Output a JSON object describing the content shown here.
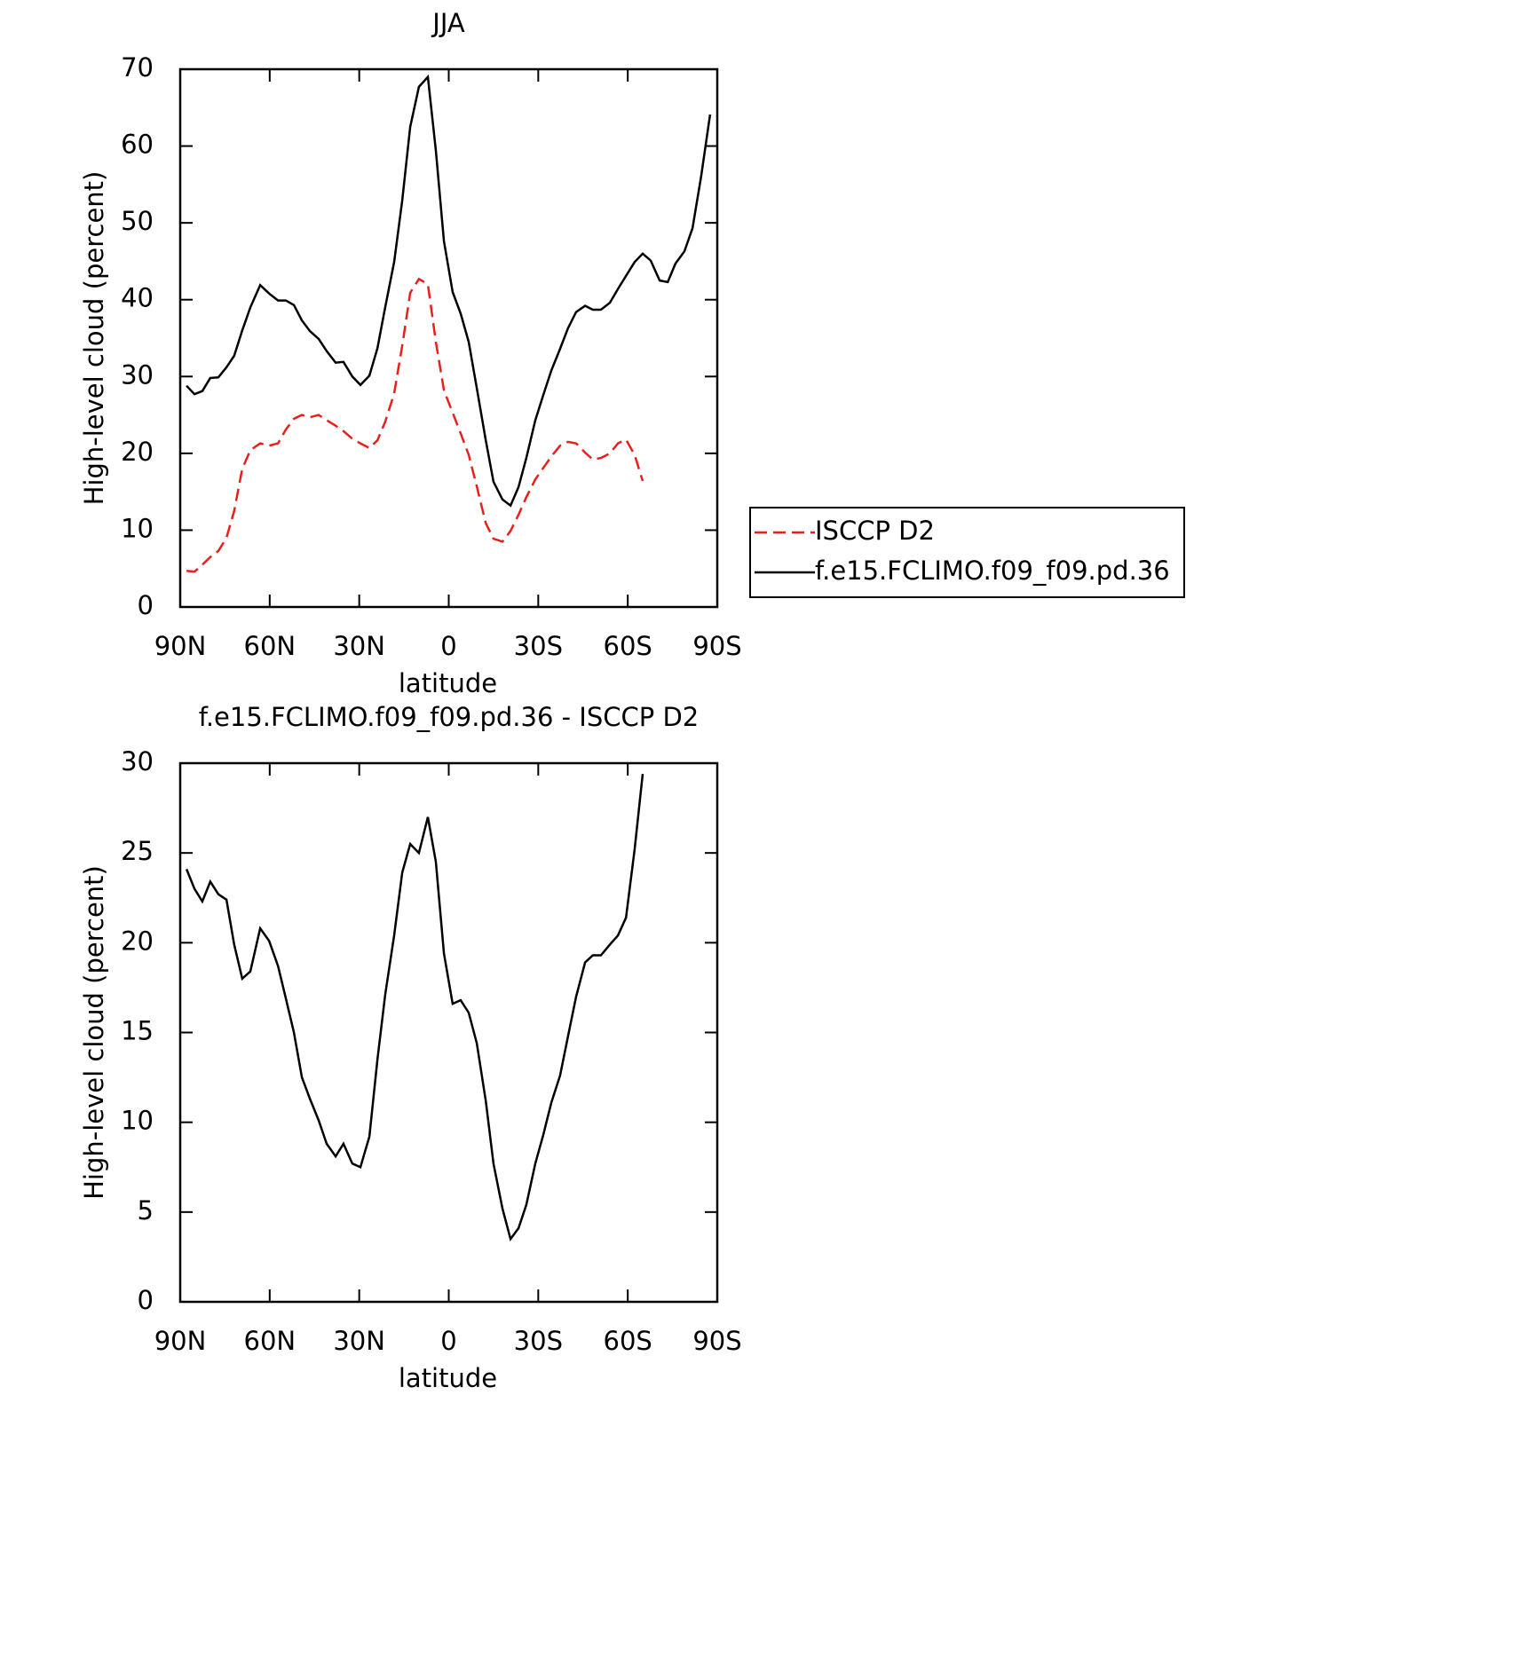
{
  "chart_data": [
    {
      "type": "line",
      "title": "JJA",
      "xlabel": "latitude",
      "ylabel": "High-level cloud (percent)",
      "x": [
        87.9,
        85.2,
        82.6,
        79.9,
        77.2,
        74.5,
        71.9,
        69.2,
        66.5,
        63.2,
        60.2,
        57.2,
        54.6,
        51.9,
        49.2,
        46.5,
        43.6,
        40.9,
        37.9,
        35.3,
        32.3,
        29.6,
        26.6,
        23.9,
        21.3,
        18.3,
        15.6,
        12.9,
        10.0,
        7.0,
        4.3,
        1.6,
        -1.3,
        -4.0,
        -6.7,
        -9.4,
        -12.4,
        -15.0,
        -18.0,
        -20.7,
        -23.4,
        -26.0,
        -29.0,
        -31.7,
        -34.4,
        -37.3,
        -40.0,
        -42.7,
        -45.7,
        -48.3,
        -51.0,
        -54.0,
        -56.7,
        -59.4,
        -62.3,
        -65.0,
        -67.7,
        -70.7,
        -73.4,
        -76.0,
        -79.0,
        -81.7,
        -84.6,
        -87.6
      ],
      "series": [
        {
          "name": "ISCCP D2",
          "color": "#e8201c",
          "dashed": true,
          "values": [
            4.7,
            4.6,
            5.5,
            6.5,
            7.3,
            9.0,
            12.5,
            18.0,
            20.4,
            21.3,
            21.0,
            21.3,
            23.1,
            24.5,
            25.0,
            24.7,
            25.0,
            24.3,
            23.6,
            22.9,
            21.9,
            21.3,
            20.7,
            21.7,
            24.1,
            27.8,
            34.0,
            40.9,
            42.7,
            42.0,
            34.5,
            28.2,
            25.3,
            22.6,
            19.8,
            15.7,
            10.9,
            8.9,
            8.5,
            9.9,
            12.0,
            14.3,
            16.6,
            18.1,
            19.6,
            21.0,
            21.5,
            21.3,
            20.1,
            19.2,
            19.4,
            20.0,
            21.3,
            21.8,
            19.8,
            16.4,
            null,
            null,
            null,
            null,
            null,
            null,
            null,
            null
          ]
        },
        {
          "name": "f.e15.FCLIMO.f09_f09.pd.36",
          "color": "#000000",
          "dashed": false,
          "values": [
            28.8,
            27.7,
            28.1,
            29.8,
            29.9,
            31.2,
            32.7,
            36.0,
            39.0,
            41.9,
            40.8,
            39.9,
            39.9,
            39.3,
            37.3,
            35.9,
            34.9,
            33.3,
            31.8,
            31.9,
            30.0,
            28.9,
            30.1,
            33.7,
            39.0,
            44.9,
            52.9,
            62.5,
            67.7,
            69.0,
            59.4,
            47.6,
            41.0,
            38.2,
            34.5,
            28.5,
            21.7,
            16.3,
            14.0,
            13.2,
            15.6,
            19.4,
            24.3,
            27.6,
            30.8,
            33.6,
            36.3,
            38.4,
            39.2,
            38.7,
            38.7,
            39.6,
            41.4,
            43.1,
            44.9,
            46.0,
            45.1,
            42.5,
            42.3,
            44.7,
            46.3,
            49.3,
            56.1,
            64.1
          ]
        }
      ],
      "xlim": [
        90,
        -90
      ],
      "xticks": [
        {
          "value": 90,
          "label": "90N"
        },
        {
          "value": 60,
          "label": "60N"
        },
        {
          "value": 30,
          "label": "30N"
        },
        0,
        {
          "value": -30,
          "label": "30S"
        },
        {
          "value": -60,
          "label": "60S"
        },
        {
          "value": -90,
          "label": "90S"
        }
      ],
      "ylim": [
        0,
        70
      ],
      "yticks": [
        0,
        10,
        20,
        30,
        40,
        50,
        60,
        70
      ],
      "legend": "right"
    },
    {
      "type": "line",
      "title": "f.e15.FCLIMO.f09_f09.pd.36 - ISCCP D2",
      "xlabel": "latitude",
      "ylabel": "High-level cloud (percent)",
      "x": [
        87.9,
        85.2,
        82.6,
        79.9,
        77.2,
        74.5,
        71.9,
        69.2,
        66.5,
        63.2,
        60.2,
        57.2,
        54.6,
        51.9,
        49.2,
        46.5,
        43.6,
        40.9,
        37.9,
        35.3,
        32.3,
        29.6,
        26.6,
        23.9,
        21.3,
        18.3,
        15.6,
        12.9,
        10.0,
        7.0,
        4.3,
        1.6,
        -1.3,
        -4.0,
        -6.7,
        -9.4,
        -12.4,
        -15.0,
        -18.0,
        -20.7,
        -23.4,
        -26.0,
        -29.0,
        -31.7,
        -34.4,
        -37.3,
        -40.0,
        -42.7,
        -45.7,
        -48.3,
        -51.0,
        -54.0,
        -56.7,
        -59.4,
        -62.3,
        -65.0
      ],
      "series": [
        {
          "color": "#000000",
          "dashed": false,
          "values": [
            24.1,
            23.0,
            22.3,
            23.4,
            22.7,
            22.4,
            19.9,
            18.0,
            18.4,
            20.8,
            20.1,
            18.7,
            16.9,
            15.0,
            12.5,
            11.3,
            10.1,
            8.8,
            8.1,
            8.8,
            7.7,
            7.5,
            9.2,
            13.5,
            17.1,
            20.4,
            23.9,
            25.5,
            25.0,
            27.0,
            24.5,
            19.4,
            16.6,
            16.8,
            16.1,
            14.4,
            11.2,
            7.7,
            5.2,
            3.5,
            4.1,
            5.4,
            7.7,
            9.3,
            11.1,
            12.6,
            14.8,
            17.0,
            18.9,
            19.3,
            19.3,
            19.9,
            20.4,
            21.4,
            25.2,
            29.4
          ]
        }
      ],
      "xlim": [
        90,
        -90
      ],
      "xticks": [
        {
          "value": 90,
          "label": "90N"
        },
        {
          "value": 60,
          "label": "60N"
        },
        {
          "value": 30,
          "label": "30N"
        },
        0,
        {
          "value": -30,
          "label": "30S"
        },
        {
          "value": -60,
          "label": "60S"
        },
        {
          "value": -90,
          "label": "90S"
        }
      ],
      "ylim": [
        0,
        30
      ],
      "yticks": [
        0,
        5,
        10,
        15,
        20,
        25,
        30
      ]
    }
  ]
}
